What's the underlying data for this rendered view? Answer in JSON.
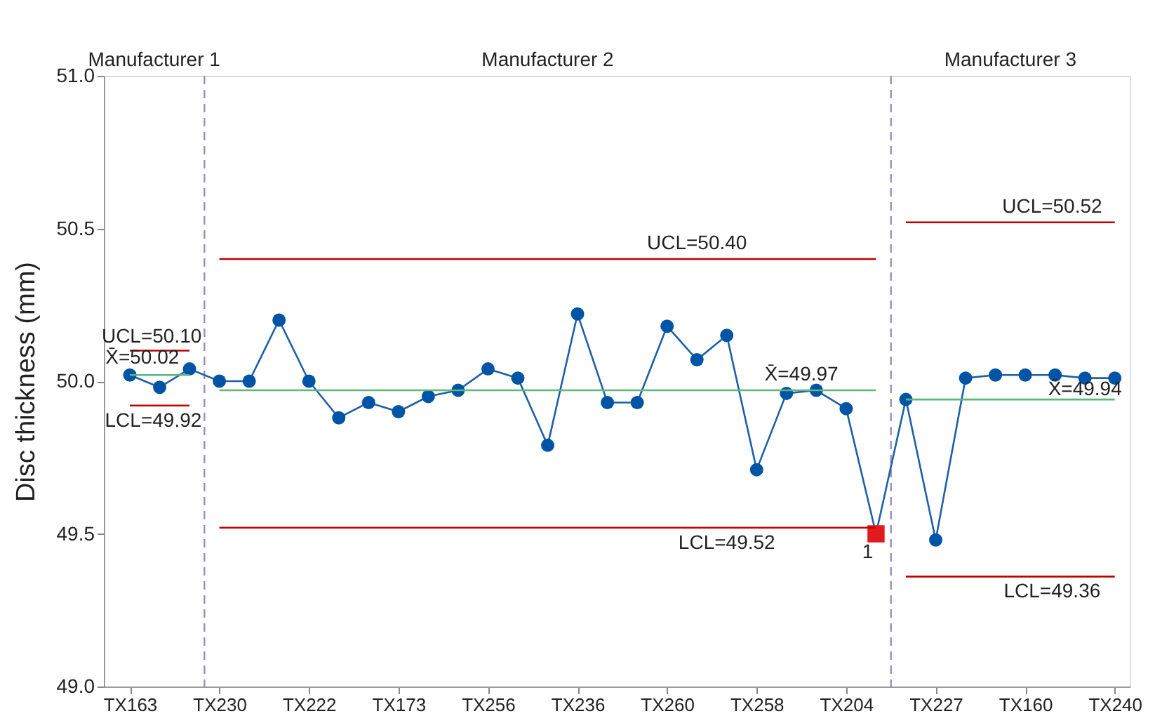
{
  "chart_data": {
    "type": "line",
    "ylabel": "Disc thickness (mm)",
    "categories": [
      "TX163",
      null,
      null,
      "TX230",
      null,
      null,
      "TX222",
      null,
      null,
      "TX173",
      null,
      null,
      "TX256",
      null,
      null,
      "TX236",
      null,
      null,
      "TX260",
      null,
      null,
      "TX258",
      null,
      null,
      "TX204",
      null,
      null,
      "TX227",
      null,
      null,
      "TX160",
      null,
      null,
      "TX240"
    ],
    "ylim": [
      49.0,
      51.0
    ],
    "yticks": [
      {
        "value": 49.0,
        "label": "49.0"
      },
      {
        "value": 49.5,
        "label": "49.5"
      },
      {
        "value": 50.0,
        "label": "50.0"
      },
      {
        "value": 50.5,
        "label": "50.5"
      },
      {
        "value": 51.0,
        "label": "51.0"
      }
    ],
    "grid": false,
    "series": [
      {
        "color": "#1f5fa8",
        "marker": "none",
        "values": [
          50.02,
          49.98,
          50.04,
          50.0,
          50.0,
          50.2,
          50.0,
          49.88,
          49.93,
          49.9,
          49.95,
          49.97,
          50.04,
          50.01,
          49.79,
          50.22,
          49.93,
          49.93,
          50.18,
          50.07,
          50.15,
          49.71,
          49.96,
          49.97,
          49.91,
          49.5,
          49.94,
          49.48,
          50.01,
          50.02,
          50.02,
          50.02,
          50.01,
          50.01
        ]
      },
      {
        "type": "scatter",
        "color": "#0054a6",
        "marker": "circle",
        "values": [
          50.02,
          49.98,
          50.04,
          50.0,
          50.0,
          50.2,
          50.0,
          49.88,
          49.93,
          49.9,
          49.95,
          49.97,
          50.04,
          50.01,
          49.79,
          50.22,
          49.93,
          49.93,
          50.18,
          50.07,
          50.15,
          49.71,
          49.96,
          49.97,
          49.91,
          null,
          49.94,
          49.48,
          50.01,
          50.02,
          50.02,
          50.02,
          50.01,
          50.01
        ]
      },
      {
        "type": "scatter",
        "color": "#e31a1c",
        "marker": "square",
        "values": [
          null,
          null,
          null,
          null,
          null,
          null,
          null,
          null,
          null,
          null,
          null,
          null,
          null,
          null,
          null,
          null,
          null,
          null,
          null,
          null,
          null,
          null,
          null,
          null,
          null,
          49.5,
          null,
          null,
          null,
          null,
          null,
          null,
          null,
          null
        ]
      },
      {
        "type": "line",
        "color": "#c00000",
        "marker": "none",
        "values": [
          50.1,
          50.1,
          50.1,
          null,
          null,
          null,
          null,
          null,
          null,
          null,
          null,
          null,
          null,
          null,
          null,
          null,
          null,
          null,
          null,
          null,
          null,
          null,
          null,
          null,
          null,
          null,
          null,
          null,
          null,
          null,
          null,
          null,
          null,
          null
        ]
      },
      {
        "type": "line",
        "color": "#5cb87a",
        "marker": "none",
        "values": [
          50.02,
          50.02,
          50.02,
          null,
          null,
          null,
          null,
          null,
          null,
          null,
          null,
          null,
          null,
          null,
          null,
          null,
          null,
          null,
          null,
          null,
          null,
          null,
          null,
          null,
          null,
          null,
          null,
          null,
          null,
          null,
          null,
          null,
          null,
          null
        ]
      },
      {
        "type": "line",
        "color": "#c00000",
        "marker": "none",
        "values": [
          49.92,
          49.92,
          49.92,
          null,
          null,
          null,
          null,
          null,
          null,
          null,
          null,
          null,
          null,
          null,
          null,
          null,
          null,
          null,
          null,
          null,
          null,
          null,
          null,
          null,
          null,
          null,
          null,
          null,
          null,
          null,
          null,
          null,
          null,
          null
        ]
      },
      {
        "type": "line",
        "color": "#c00000",
        "marker": "none",
        "values": [
          null,
          null,
          null,
          50.4,
          50.4,
          50.4,
          50.4,
          50.4,
          50.4,
          50.4,
          50.4,
          50.4,
          50.4,
          50.4,
          50.4,
          50.4,
          50.4,
          50.4,
          50.4,
          50.4,
          50.4,
          50.4,
          50.4,
          50.4,
          50.4,
          50.4,
          null,
          null,
          null,
          null,
          null,
          null,
          null,
          null
        ]
      },
      {
        "type": "line",
        "color": "#5cb87a",
        "marker": "none",
        "values": [
          null,
          null,
          null,
          49.97,
          49.97,
          49.97,
          49.97,
          49.97,
          49.97,
          49.97,
          49.97,
          49.97,
          49.97,
          49.97,
          49.97,
          49.97,
          49.97,
          49.97,
          49.97,
          49.97,
          49.97,
          49.97,
          49.97,
          49.97,
          49.97,
          49.97,
          null,
          null,
          null,
          null,
          null,
          null,
          null,
          null
        ]
      },
      {
        "type": "line",
        "color": "#c00000",
        "marker": "none",
        "values": [
          null,
          null,
          null,
          49.52,
          49.52,
          49.52,
          49.52,
          49.52,
          49.52,
          49.52,
          49.52,
          49.52,
          49.52,
          49.52,
          49.52,
          49.52,
          49.52,
          49.52,
          49.52,
          49.52,
          49.52,
          49.52,
          49.52,
          49.52,
          49.52,
          49.52,
          null,
          null,
          null,
          null,
          null,
          null,
          null,
          null
        ]
      },
      {
        "type": "line",
        "color": "#c00000",
        "marker": "none",
        "values": [
          null,
          null,
          null,
          null,
          null,
          null,
          null,
          null,
          null,
          null,
          null,
          null,
          null,
          null,
          null,
          null,
          null,
          null,
          null,
          null,
          null,
          null,
          null,
          null,
          null,
          null,
          50.52,
          50.52,
          50.52,
          50.52,
          50.52,
          50.52,
          50.52,
          50.52
        ]
      },
      {
        "type": "line",
        "color": "#5cb87a",
        "marker": "none",
        "values": [
          null,
          null,
          null,
          null,
          null,
          null,
          null,
          null,
          null,
          null,
          null,
          null,
          null,
          null,
          null,
          null,
          null,
          null,
          null,
          null,
          null,
          null,
          null,
          null,
          null,
          null,
          49.94,
          49.94,
          49.94,
          49.94,
          49.94,
          49.94,
          49.94,
          49.94
        ]
      },
      {
        "type": "line",
        "color": "#c00000",
        "marker": "none",
        "values": [
          null,
          null,
          null,
          null,
          null,
          null,
          null,
          null,
          null,
          null,
          null,
          null,
          null,
          null,
          null,
          null,
          null,
          null,
          null,
          null,
          null,
          null,
          null,
          null,
          null,
          null,
          49.36,
          49.36,
          49.36,
          49.36,
          49.36,
          49.36,
          49.36,
          49.36
        ]
      }
    ],
    "annotations": [
      "Manufacturer 1",
      "Manufacturer 2",
      "Manufacturer 3",
      {
        "text": "UCL=50.10",
        "y": 50.1
      },
      {
        "text": "X̄=50.02",
        "y": 50.02
      },
      {
        "text": "LCL=49.92",
        "y": 49.92
      },
      {
        "text": "UCL=50.40",
        "y": 50.4
      },
      {
        "text": "X̄=49.97",
        "y": 49.97
      },
      {
        "text": "LCL=49.52",
        "y": 49.52
      },
      {
        "text": "1",
        "y": 49.5
      },
      {
        "text": "UCL=50.52",
        "y": 50.52
      },
      {
        "text": "X̄=49.94",
        "y": 49.94
      },
      {
        "text": "LCL=49.36",
        "y": 49.36
      }
    ]
  }
}
